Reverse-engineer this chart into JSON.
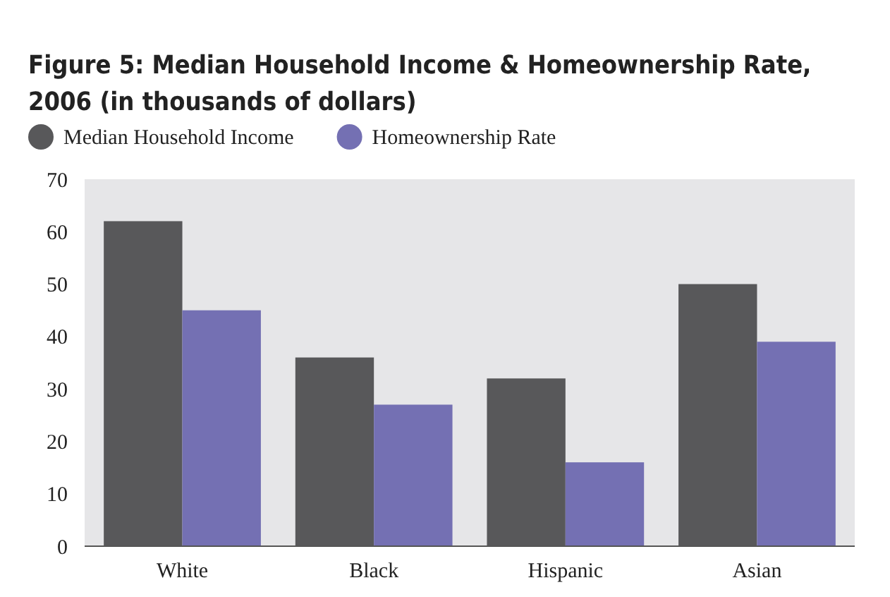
{
  "chart_data": {
    "type": "bar",
    "title": "Figure 5: Median Household Income & Homeownership Rate, 2006 (in thousands of dollars)",
    "categories": [
      "White",
      "Black",
      "Hispanic",
      "Asian"
    ],
    "series": [
      {
        "name": "Median Household Income",
        "color": "#58585a",
        "values": [
          62,
          36,
          32,
          50
        ]
      },
      {
        "name": "Homeownership Rate",
        "color": "#7470b3",
        "values": [
          45,
          27,
          16,
          39
        ]
      }
    ],
    "ylim": [
      0,
      70
    ],
    "yticks": [
      0,
      10,
      20,
      30,
      40,
      50,
      60,
      70
    ],
    "grid": false,
    "legend": "top left"
  }
}
